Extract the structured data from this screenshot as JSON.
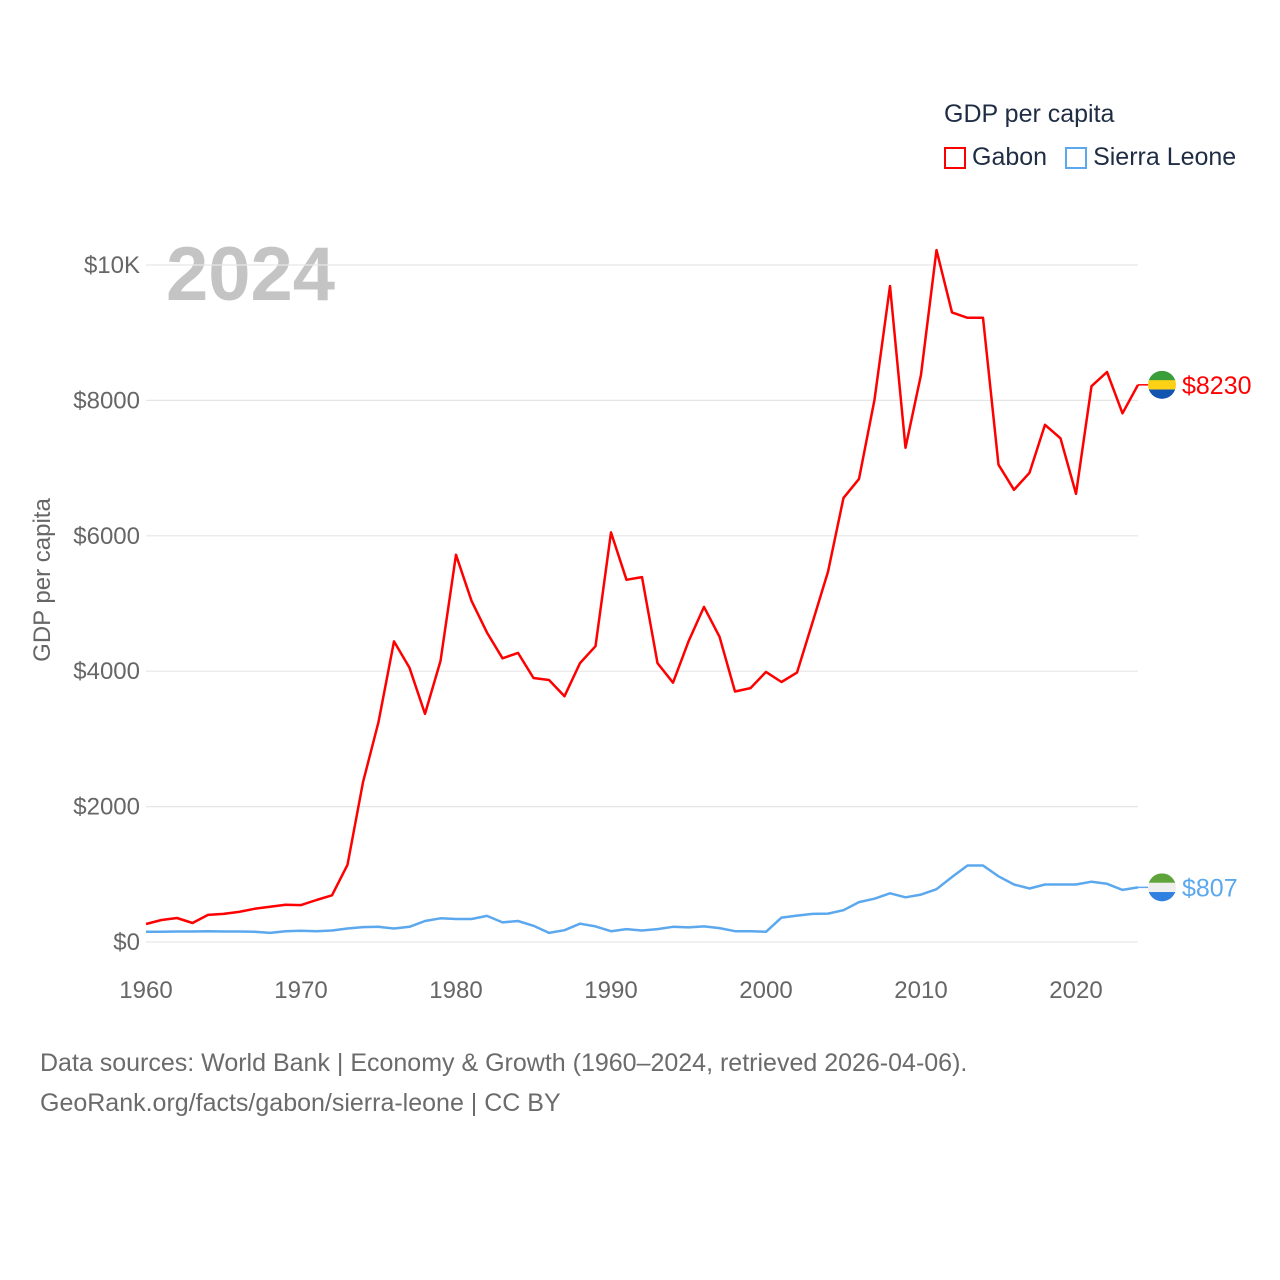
{
  "chart_data": {
    "type": "line",
    "title": "GDP per capita",
    "year_label": "2024",
    "ylabel": "GDP per capita",
    "xlabel": "",
    "xlim": [
      1960,
      2024
    ],
    "ylim": [
      0,
      10000
    ],
    "x_ticks": [
      1960,
      1970,
      1980,
      1990,
      2000,
      2010,
      2020
    ],
    "y_ticks": [
      0,
      2000,
      4000,
      6000,
      8000,
      10000
    ],
    "y_tick_labels": [
      "$0",
      "$2000",
      "$4000",
      "$6000",
      "$8000",
      "$10K"
    ],
    "grid": true,
    "legend_position": "top-right",
    "x": [
      1960,
      1961,
      1962,
      1963,
      1964,
      1965,
      1966,
      1967,
      1968,
      1969,
      1970,
      1971,
      1972,
      1973,
      1974,
      1975,
      1976,
      1977,
      1978,
      1979,
      1980,
      1981,
      1982,
      1983,
      1984,
      1985,
      1986,
      1987,
      1988,
      1989,
      1990,
      1991,
      1992,
      1993,
      1994,
      1995,
      1996,
      1997,
      1998,
      1999,
      2000,
      2001,
      2002,
      2003,
      2004,
      2005,
      2006,
      2007,
      2008,
      2009,
      2010,
      2011,
      2012,
      2013,
      2014,
      2015,
      2016,
      2017,
      2018,
      2019,
      2020,
      2021,
      2022,
      2023,
      2024
    ],
    "series": [
      {
        "name": "Gabon",
        "color": "#ff0000",
        "end_label": "$8230",
        "values": [
          266,
          325,
          355,
          280,
          400,
          415,
          445,
          490,
          520,
          550,
          545,
          620,
          690,
          1140,
          2360,
          3250,
          4440,
          4050,
          3370,
          4150,
          5720,
          5040,
          4570,
          4190,
          4270,
          3900,
          3870,
          3630,
          4120,
          4370,
          6050,
          5350,
          5390,
          4120,
          3830,
          4440,
          4950,
          4510,
          3700,
          3750,
          3990,
          3840,
          3980,
          4720,
          5470,
          6560,
          6840,
          8010,
          9690,
          7300,
          8380,
          10220,
          9300,
          9220,
          9220,
          7050,
          6680,
          6930,
          7640,
          7440,
          6620,
          8210,
          8420,
          7810,
          8230
        ],
        "flag_colors": [
          "#3a9e3a",
          "#fcd116",
          "#1155b0"
        ]
      },
      {
        "name": "Sierra Leone",
        "color": "#5ca8ee",
        "end_label": "$807",
        "values": [
          150,
          150,
          155,
          155,
          160,
          155,
          155,
          150,
          135,
          160,
          165,
          160,
          170,
          200,
          220,
          225,
          200,
          225,
          310,
          350,
          340,
          340,
          385,
          290,
          310,
          240,
          135,
          175,
          270,
          230,
          160,
          190,
          170,
          190,
          225,
          215,
          230,
          205,
          160,
          160,
          150,
          360,
          390,
          415,
          420,
          470,
          590,
          640,
          720,
          660,
          700,
          780,
          960,
          1130,
          1130,
          970,
          850,
          790,
          850,
          850,
          850,
          890,
          860,
          770,
          807
        ],
        "flag_colors": [
          "#5fa43a",
          "#eeeeee",
          "#2f80e0"
        ]
      }
    ]
  },
  "footer": {
    "line1": "Data sources: World Bank | Economy & Growth (1960–2024, retrieved 2026-04-06).",
    "line2": "GeoRank.org/facts/gabon/sierra-leone | CC BY"
  }
}
